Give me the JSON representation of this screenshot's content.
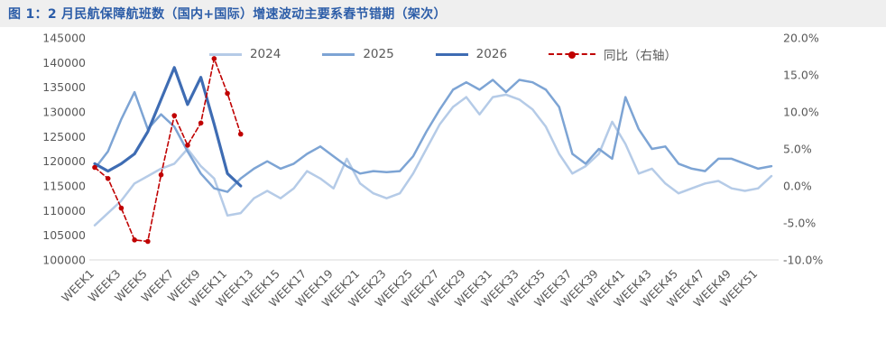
{
  "title": "图 1：2 月民航保障航班数（国内+国际）增速波动主要系春节错期（架次）",
  "chart_data": {
    "type": "line",
    "weeks": 52,
    "x_labels": [
      "WEEK1",
      "WEEK3",
      "WEEK5",
      "WEEK7",
      "WEEK9",
      "WEEK11",
      "WEEK13",
      "WEEK15",
      "WEEK17",
      "WEEK19",
      "WEEK21",
      "WEEK23",
      "WEEK25",
      "WEEK27",
      "WEEK29",
      "WEEK31",
      "WEEK33",
      "WEEK35",
      "WEEK37",
      "WEEK39",
      "WEEK41",
      "WEEK43",
      "WEEK45",
      "WEEK47",
      "WEEK49",
      "WEEK51"
    ],
    "left_axis": {
      "min": 100000,
      "max": 145000,
      "step": 5000,
      "ticks": [
        "100000",
        "105000",
        "110000",
        "115000",
        "120000",
        "125000",
        "130000",
        "135000",
        "140000",
        "145000"
      ]
    },
    "right_axis": {
      "min": -10,
      "max": 20,
      "step": 5,
      "ticks": [
        "-10.0%",
        "-5.0%",
        "0.0%",
        "5.0%",
        "10.0%",
        "15.0%",
        "20.0%"
      ]
    },
    "legend_position": "top",
    "grid": false,
    "series": [
      {
        "name": "2024",
        "color": "#b5cbe7",
        "width": 2.5,
        "axis": "left",
        "dashed": false,
        "markers": false,
        "values": [
          107000,
          109500,
          112000,
          115500,
          117000,
          118500,
          119500,
          122500,
          119000,
          116500,
          109000,
          109500,
          112500,
          114000,
          112500,
          114500,
          118000,
          116500,
          114500,
          120500,
          115500,
          113500,
          112500,
          113500,
          117500,
          122500,
          127500,
          131000,
          133000,
          129500,
          133000,
          133500,
          132500,
          130500,
          127000,
          121500,
          117500,
          119000,
          121500,
          128000,
          123500,
          117500,
          118500,
          115500,
          113500,
          114500,
          115500,
          116000,
          114500,
          114000,
          114500,
          117000
        ]
      },
      {
        "name": "2025",
        "color": "#7da4d4",
        "width": 2.5,
        "axis": "left",
        "dashed": false,
        "markers": false,
        "values": [
          118500,
          122000,
          128500,
          134000,
          126500,
          129500,
          127000,
          122000,
          117500,
          114500,
          113800,
          116500,
          118500,
          120000,
          118500,
          119500,
          121500,
          123000,
          121000,
          119000,
          117500,
          118000,
          117800,
          118000,
          121000,
          126000,
          130500,
          134500,
          136000,
          134500,
          136500,
          134000,
          136500,
          136000,
          134500,
          131000,
          121500,
          119500,
          122500,
          120500,
          133000,
          126500,
          122500,
          123000,
          119500,
          118500,
          118000,
          120500,
          120500,
          119500,
          118500,
          119000
        ]
      },
      {
        "name": "2026",
        "color": "#3e6cb3",
        "width": 3.2,
        "axis": "left",
        "dashed": false,
        "markers": false,
        "values": [
          119500,
          118000,
          119500,
          121500,
          126000,
          132500,
          139000,
          131500,
          137000,
          127500,
          117500,
          115000
        ]
      },
      {
        "name": "同比（右轴）",
        "color": "#c00000",
        "width": 1.6,
        "axis": "right",
        "dashed": true,
        "markers": true,
        "values": [
          2.5,
          1.0,
          -3.0,
          -7.3,
          -7.5,
          1.5,
          9.5,
          5.5,
          8.5,
          17.2,
          12.5,
          7.0
        ]
      }
    ]
  }
}
